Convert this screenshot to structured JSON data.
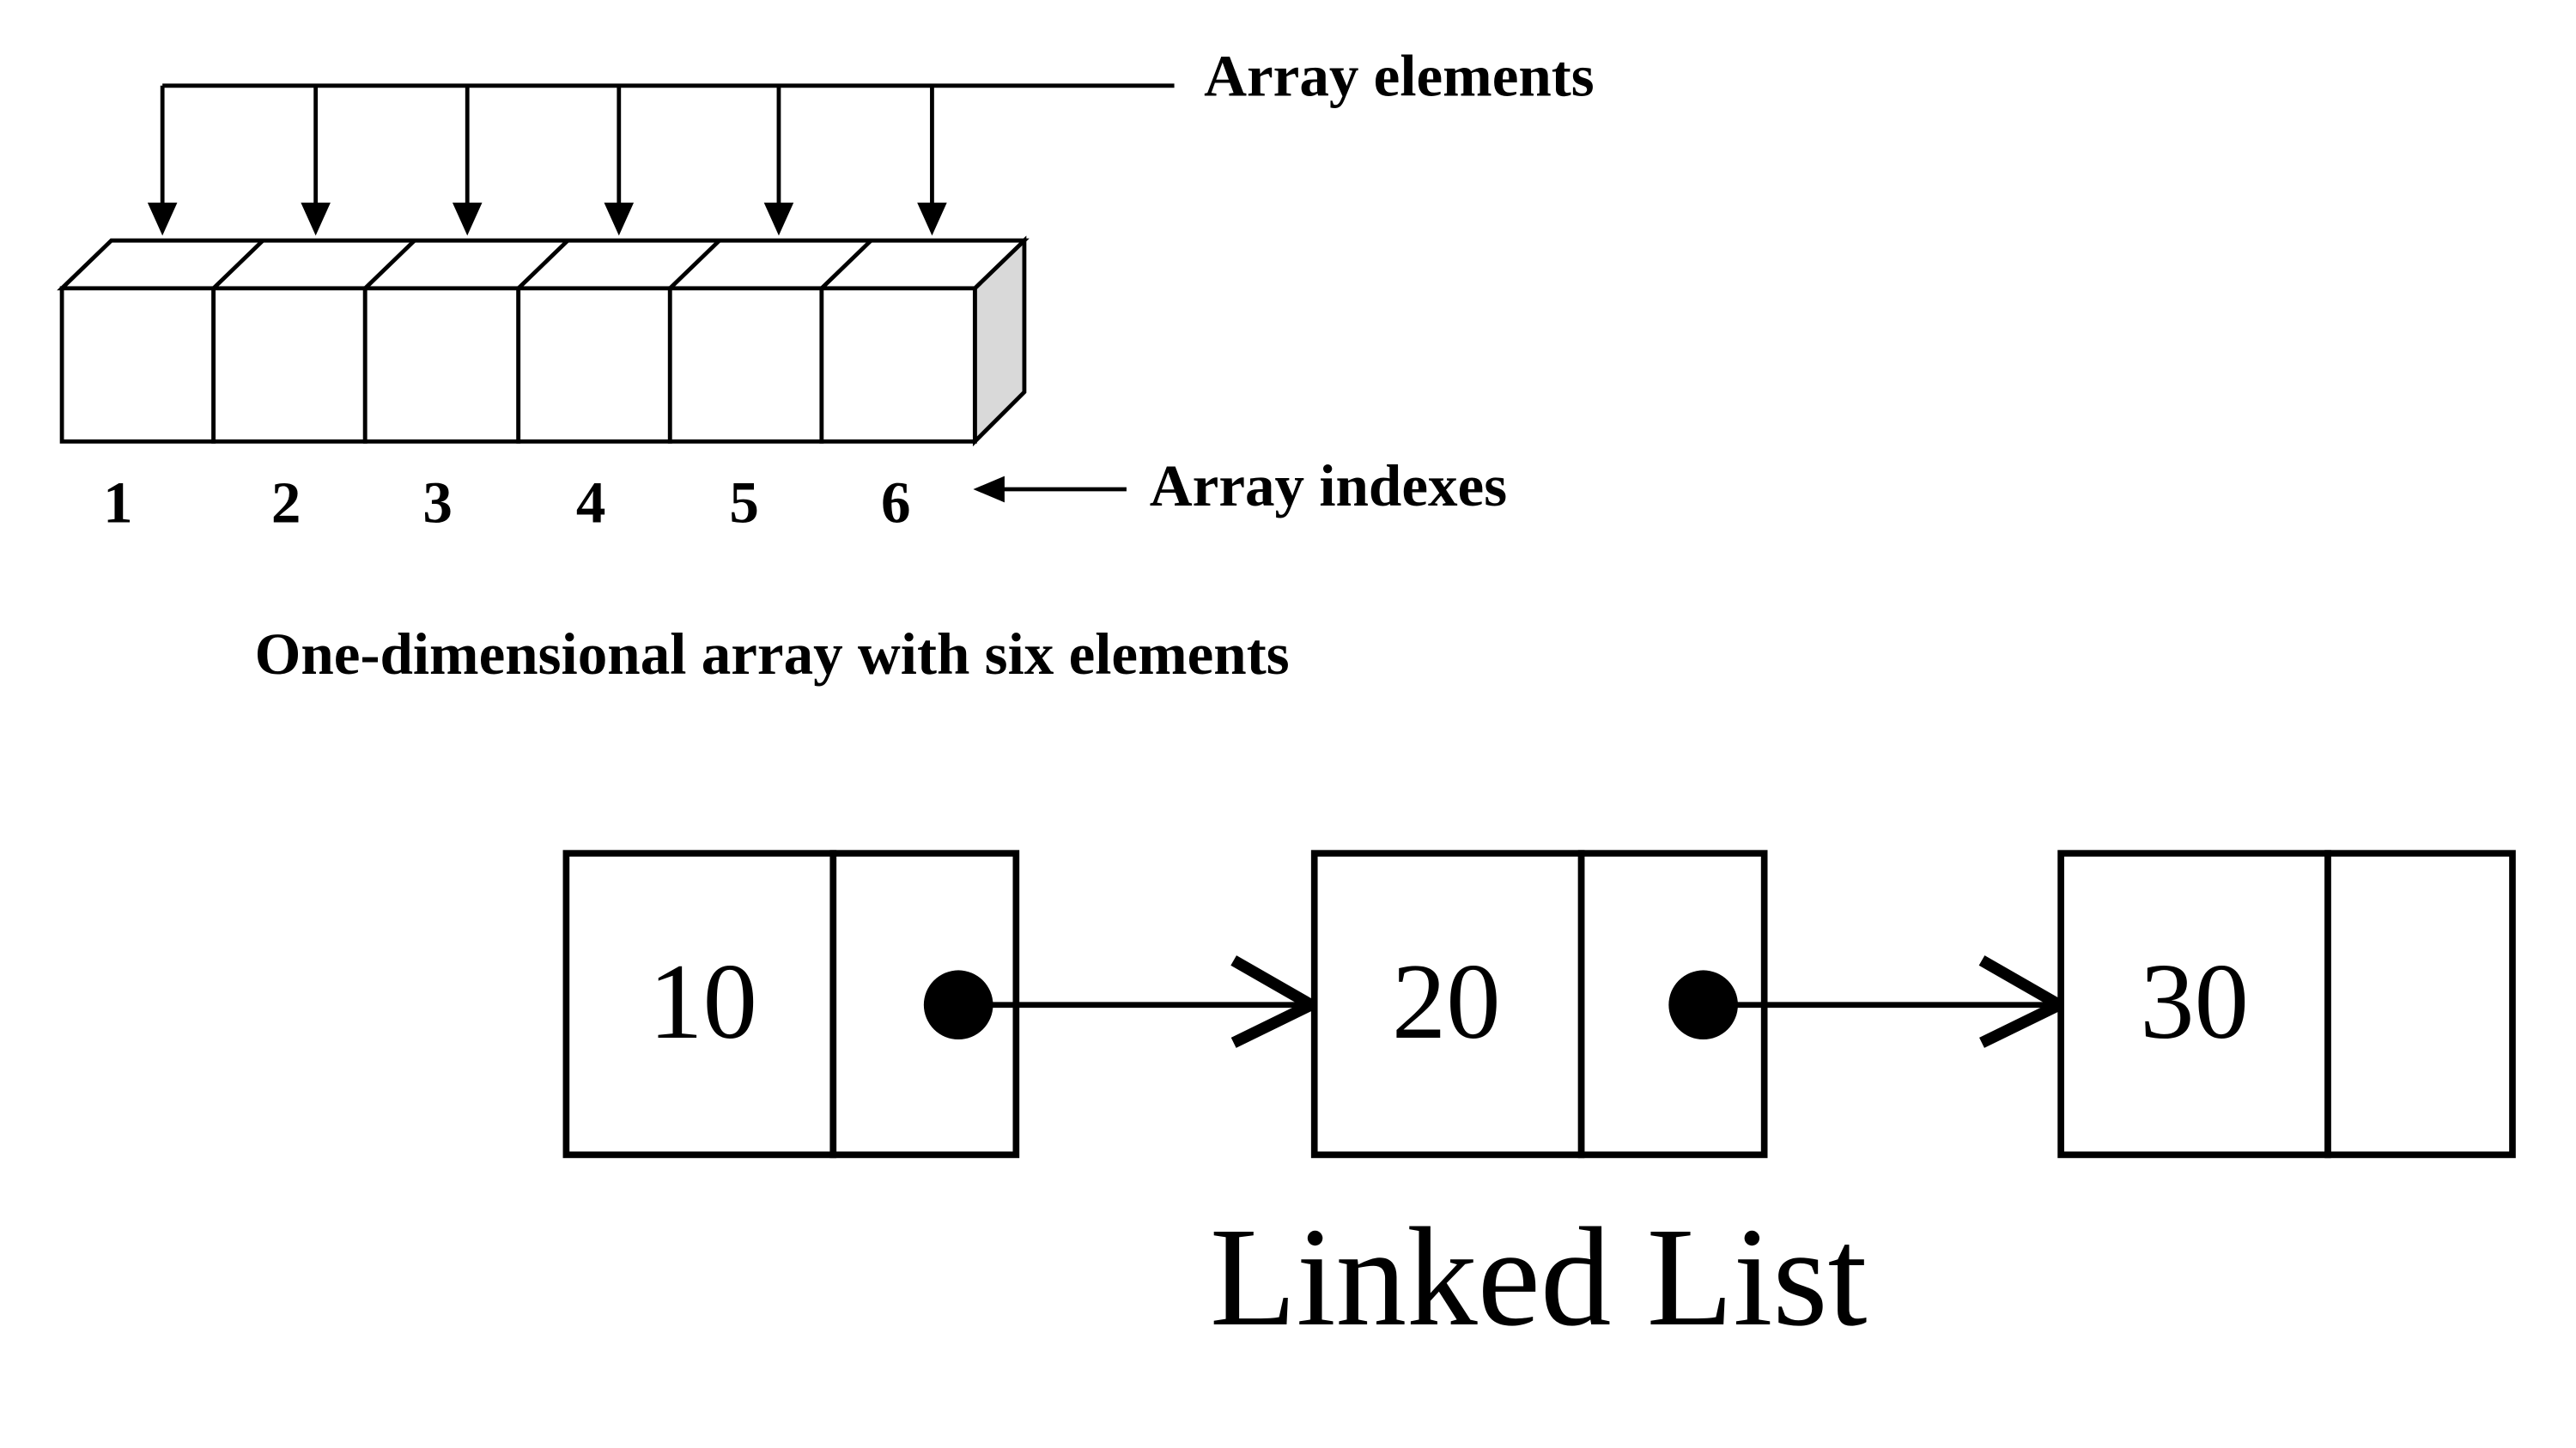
{
  "array_diagram": {
    "elements_label": "Array elements",
    "indexes_label": "Array indexes",
    "caption": "One-dimensional array with six elements",
    "indexes": [
      "1",
      "2",
      "3",
      "4",
      "5",
      "6"
    ]
  },
  "linked_list": {
    "title": "Linked List",
    "nodes": [
      {
        "value": "10",
        "has_next": true
      },
      {
        "value": "20",
        "has_next": true
      },
      {
        "value": "30",
        "has_next": false
      }
    ]
  }
}
